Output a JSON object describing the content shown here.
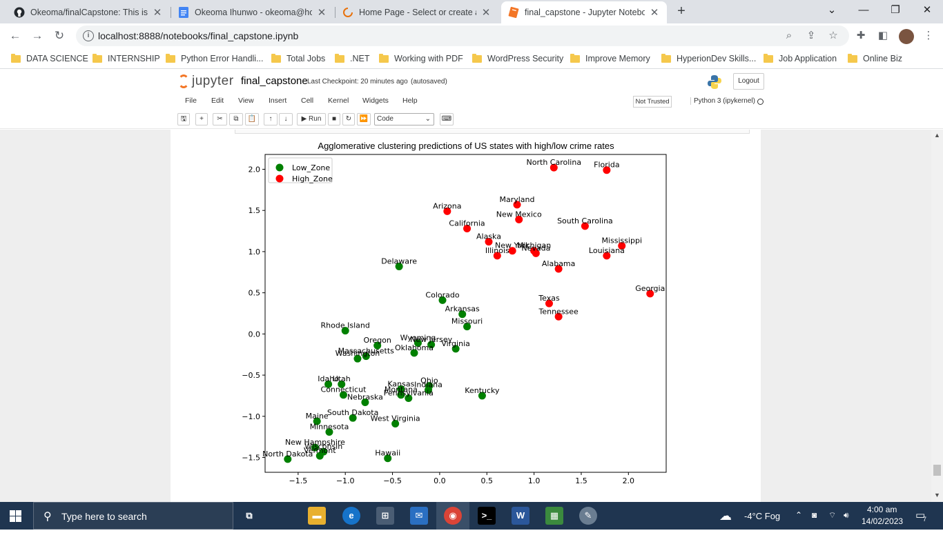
{
  "browser": {
    "tabs": [
      {
        "title": "Okeoma/finalCapstone: This is th",
        "icon": "github-icon"
      },
      {
        "title": "Okeoma Ihunwo - okeoma@hot",
        "icon": "docs-icon"
      },
      {
        "title": "Home Page - Select or create a n",
        "icon": "loading-icon"
      },
      {
        "title": "final_capstone - Jupyter Noteboo",
        "icon": "jupyter-icon",
        "active": true
      }
    ],
    "url": "localhost:8888/notebooks/final_capstone.ipynb",
    "bookmarks": [
      "DATA SCIENCE",
      "INTERNSHIP",
      "Python Error Handli...",
      "Total Jobs",
      ".NET",
      "Working with PDF",
      "WordPress Security",
      "Improve Memory",
      "HyperionDev Skills...",
      "Job Application",
      "Online Biz"
    ]
  },
  "jupyter": {
    "logo_text": "jupyter",
    "notebook_name": "final_capstone",
    "checkpoint": "Last Checkpoint: 20 minutes ago",
    "autosave": "(autosaved)",
    "logout": "Logout",
    "menus": [
      "File",
      "Edit",
      "View",
      "Insert",
      "Cell",
      "Kernel",
      "Widgets",
      "Help"
    ],
    "trust": "Not Trusted",
    "kernel": "Python 3 (ipykernel)",
    "run_label": "Run",
    "cell_type": "Code"
  },
  "chart_data": {
    "type": "scatter",
    "title": "Agglomerative clustering predictions of US states with high/low crime rates",
    "xlim": [
      -1.85,
      2.4
    ],
    "ylim": [
      -1.68,
      2.18
    ],
    "xticks": [
      -1.5,
      -1.0,
      -0.5,
      0.0,
      0.5,
      1.0,
      1.5,
      2.0
    ],
    "yticks": [
      -1.5,
      -1.0,
      -0.5,
      0.0,
      0.5,
      1.0,
      1.5,
      2.0
    ],
    "xtick_labels": [
      "−1.5",
      "−1.0",
      "−0.5",
      "0.0",
      "0.5",
      "1.0",
      "1.5",
      "2.0"
    ],
    "ytick_labels": [
      "−1.5",
      "−1.0",
      "−0.5",
      "0.0",
      "0.5",
      "1.0",
      "1.5",
      "2.0"
    ],
    "legend_position": "top-left",
    "series": [
      {
        "name": "Low_Zone",
        "color": "#008000",
        "points": [
          {
            "label": "Delaware",
            "x": -0.43,
            "y": 0.82
          },
          {
            "label": "Colorado",
            "x": 0.03,
            "y": 0.41
          },
          {
            "label": "Arkansas",
            "x": 0.24,
            "y": 0.24
          },
          {
            "label": "Missouri",
            "x": 0.29,
            "y": 0.09
          },
          {
            "label": "Rhode Island",
            "x": -1.0,
            "y": 0.04
          },
          {
            "label": "Oregon",
            "x": -0.66,
            "y": -0.14
          },
          {
            "label": "Wyoming",
            "x": -0.23,
            "y": -0.11
          },
          {
            "label": "New Jersey",
            "x": -0.09,
            "y": -0.13
          },
          {
            "label": "Virginia",
            "x": 0.17,
            "y": -0.18
          },
          {
            "label": "Oklahoma",
            "x": -0.27,
            "y": -0.23
          },
          {
            "label": "Massachusetts",
            "x": -0.78,
            "y": -0.27
          },
          {
            "label": "Washington",
            "x": -0.87,
            "y": -0.3
          },
          {
            "label": "Idaho",
            "x": -1.18,
            "y": -0.61
          },
          {
            "label": "Utah",
            "x": -1.04,
            "y": -0.61
          },
          {
            "label": "Ohio",
            "x": -0.11,
            "y": -0.63
          },
          {
            "label": "Kansas",
            "x": -0.41,
            "y": -0.67
          },
          {
            "label": "Indiana",
            "x": -0.12,
            "y": -0.68
          },
          {
            "label": "Connecticut",
            "x": -1.02,
            "y": -0.74
          },
          {
            "label": "Montana",
            "x": -0.41,
            "y": -0.74
          },
          {
            "label": "Pennsylvania",
            "x": -0.33,
            "y": -0.78
          },
          {
            "label": "Nebraska",
            "x": -0.79,
            "y": -0.83
          },
          {
            "label": "Kentucky",
            "x": 0.45,
            "y": -0.75
          },
          {
            "label": "South Dakota",
            "x": -0.92,
            "y": -1.02
          },
          {
            "label": "Maine",
            "x": -1.3,
            "y": -1.06
          },
          {
            "label": "West Virginia",
            "x": -0.47,
            "y": -1.09
          },
          {
            "label": "Minnesota",
            "x": -1.17,
            "y": -1.19
          },
          {
            "label": "New Hampshire",
            "x": -1.32,
            "y": -1.38
          },
          {
            "label": "Wisconsin",
            "x": -1.23,
            "y": -1.43
          },
          {
            "label": "Vermont",
            "x": -1.27,
            "y": -1.48
          },
          {
            "label": "North Dakota",
            "x": -1.61,
            "y": -1.52
          },
          {
            "label": "Hawaii",
            "x": -0.55,
            "y": -1.51
          }
        ]
      },
      {
        "name": "High_Zone",
        "color": "#ff0000",
        "points": [
          {
            "label": "North Carolina",
            "x": 1.21,
            "y": 2.02
          },
          {
            "label": "Florida",
            "x": 1.77,
            "y": 1.99
          },
          {
            "label": "Maryland",
            "x": 0.82,
            "y": 1.57
          },
          {
            "label": "Arizona",
            "x": 0.08,
            "y": 1.49
          },
          {
            "label": "New Mexico",
            "x": 0.84,
            "y": 1.39
          },
          {
            "label": "South Carolina",
            "x": 1.54,
            "y": 1.31
          },
          {
            "label": "California",
            "x": 0.29,
            "y": 1.28
          },
          {
            "label": "Alaska",
            "x": 0.52,
            "y": 1.12
          },
          {
            "label": "Mississippi",
            "x": 1.93,
            "y": 1.07
          },
          {
            "label": "New York",
            "x": 0.77,
            "y": 1.01
          },
          {
            "label": "Michigan",
            "x": 1.0,
            "y": 1.01
          },
          {
            "label": "Nevada",
            "x": 1.02,
            "y": 0.98
          },
          {
            "label": "Louisiana",
            "x": 1.77,
            "y": 0.95
          },
          {
            "label": "Illinois",
            "x": 0.61,
            "y": 0.95
          },
          {
            "label": "Alabama",
            "x": 1.26,
            "y": 0.79
          },
          {
            "label": "Georgia",
            "x": 2.23,
            "y": 0.49
          },
          {
            "label": "Texas",
            "x": 1.16,
            "y": 0.37
          },
          {
            "label": "Tennessee",
            "x": 1.26,
            "y": 0.21
          }
        ]
      }
    ]
  },
  "taskbar": {
    "search_placeholder": "Type here to search",
    "weather": "-4°C  Fog",
    "time": "4:00 am",
    "date": "14/02/2023",
    "notifications": "7"
  }
}
